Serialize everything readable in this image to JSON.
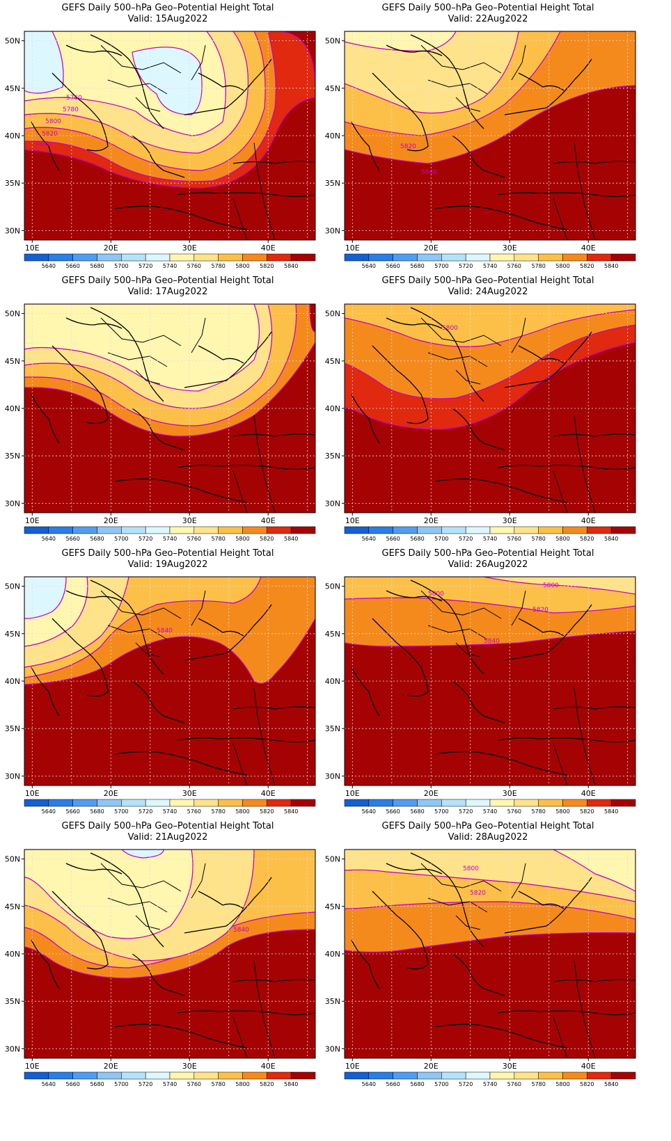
{
  "figure_title": "GEFS Daily 500–hPa Geo–Potential Height Total",
  "valid_prefix": "Valid:",
  "map_icon": "geopotential-height-contour-map",
  "lon_ticks": [
    "10E",
    "20E",
    "30E",
    "40E"
  ],
  "lat_ticks": [
    "50N",
    "45N",
    "40N",
    "35N",
    "30N"
  ],
  "colorbar": {
    "labels": [
      "5640",
      "5660",
      "5680",
      "5700",
      "5720",
      "5740",
      "5760",
      "5780",
      "5800",
      "5820",
      "5840"
    ],
    "colors": [
      "#1560d0",
      "#2a7ee6",
      "#4f9df0",
      "#8fc6f4",
      "#b4e2fa",
      "#ddf7ff",
      "#fff6b0",
      "#ffe38a",
      "#fcc048",
      "#f58a1c",
      "#e0290e",
      "#a50303"
    ]
  },
  "contour_color": "#c800c8",
  "panels": [
    {
      "valid": "15Aug2022",
      "contour_labels": [
        "5760",
        "5780",
        "5800",
        "5820",
        "5840"
      ]
    },
    {
      "valid": "17Aug2022",
      "contour_labels": []
    },
    {
      "valid": "19Aug2022",
      "contour_labels": [
        "5840"
      ]
    },
    {
      "valid": "21Aug2022",
      "contour_labels": [
        "5840"
      ]
    },
    {
      "valid": "22Aug2022",
      "contour_labels": [
        "5820",
        "5840"
      ]
    },
    {
      "valid": "24Aug2022",
      "contour_labels": [
        "5800"
      ]
    },
    {
      "valid": "26Aug2022",
      "contour_labels": [
        "5800",
        "5800",
        "5820",
        "5840"
      ]
    },
    {
      "valid": "28Aug2022",
      "contour_labels": [
        "5800",
        "5820"
      ]
    }
  ]
}
